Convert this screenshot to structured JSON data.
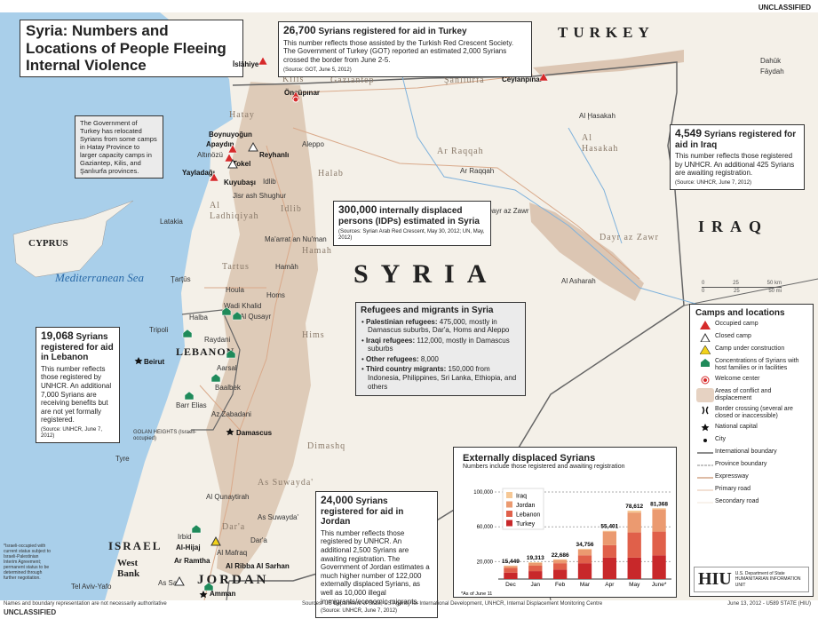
{
  "classification_top": "UNCLASSIFIED",
  "classification_bottom": "UNCLASSIFIED",
  "title": "Syria: Numbers and Locations of People Fleeing Internal Violence",
  "countries": {
    "turkey": "TURKEY",
    "syria": "SYRIA",
    "iraq": "IRAQ",
    "lebanon": "LEBANON",
    "jordan": "JORDAN",
    "israel": "ISRAEL",
    "cyprus": "CYPRUS",
    "west_bank": "West Bank"
  },
  "sea": "Mediterranean Sea",
  "provinces": [
    "Halab",
    "Idlib",
    "Al Ladhiqiyah",
    "Tartus",
    "Hamah",
    "Hims",
    "Ar Raqqah",
    "Dayr az Zawr",
    "Al Hasakah",
    "Dimashq",
    "As Suwayda'",
    "Dar'a",
    "Hatay",
    "Gaziantep",
    "Şanlıurfa",
    "Kilis",
    "Al Qunaytirah"
  ],
  "cities": {
    "aleppo": "Aleppo",
    "idlib": "Idlib",
    "latakia": "Latakia",
    "tartus": "Ţarţūs",
    "hamah": "Hamāh",
    "homs": "Homs",
    "raqqah": "Ar Raqqah",
    "dayr": "Dayr az Zawr",
    "hasakah": "Al Ḩasakah",
    "ashara": "Al Asharah",
    "damascus": "Damascus",
    "beirut": "Beirut",
    "tripoli": "Tripoli",
    "tyre": "Tyre",
    "amman": "Amman",
    "irbid": "Irbid",
    "mafraq": "Al Mafraq",
    "ramtha": "Ar Ramtha",
    "dara": "Dar'a",
    "suwayda": "As Suwayda'",
    "quneitra": "Al Qunaytirah",
    "telaviv": "Tel Aviv-Yafo",
    "assalt": "As Salt",
    "maarrat": "Ma'arrat an Nu'man",
    "jisr": "Jisr ash Shughur",
    "houla": "Houla",
    "qusayr": "Al Qusayr",
    "zabadani": "Az Zabadani",
    "baalbek": "Baalbek",
    "barrelias": "Barr Elias",
    "aarsal": "Aarsal",
    "raydani": "Raydani",
    "halba": "Halba",
    "wadi": "Wadi Khalid",
    "dahuk": "Dahūk",
    "faydah": "Fāydah",
    "golan": "GOLAN HEIGHTS (Israeli-occupied)"
  },
  "camps": [
    "İslâhiye",
    "Öncüpınar",
    "Ceylanpınar",
    "Boynuyoğun",
    "Apaydın",
    "Altınözü",
    "Tokel",
    "Yayladağı",
    "Kuyubaşı",
    "Reyhanlı",
    "Al-Hijaj",
    "Al Ribba Al Sarhan"
  ],
  "boxes": {
    "turkey": {
      "number": "26,700",
      "heading": "Syrians registered for aid in Turkey",
      "body": "This number reflects those assisted by the Turkish Red Crescent Society. The Government of Turkey (GOT) reported an estimated 2,000 Syrians crossed the border from June 2-5.",
      "source": "(Source: GOT, June 5, 2012)"
    },
    "hatay_note": "The Government of Turkey has relocated Syrians from some camps in Hatay Province to larger capacity camps in Gaziantep, Kilis, and Şanlıurfa provinces.",
    "idp": {
      "number": "300,000",
      "heading": "internally displaced persons (IDPs) estimated in Syria",
      "source": "(Sources: Syrian Arab Red Crescent, May 30, 2012; UN, May, 2012)"
    },
    "iraq": {
      "number": "4,549",
      "heading": "Syrians registered for aid in Iraq",
      "body": "This number reflects those registered by UNHCR. An additional 425 Syrians are awaiting registration.",
      "source": "(Source: UNHCR, June 7, 2012)"
    },
    "lebanon": {
      "number": "19,068",
      "heading": "Syrians registered for aid in Lebanon",
      "body": "This number reflects those registered by UNHCR. An additional 7,000 Syrians are receiving benefits but are not yet formally registered.",
      "source": "(Source: UNHCR, June 7, 2012)"
    },
    "jordan": {
      "number": "24,000",
      "heading": "Syrians registered for aid in Jordan",
      "body": "This number reflects those registered by UNHCR. An additional 2,500 Syrians are awaiting registration. The Government of Jordan estimates a much higher number of 122,000 externally displaced Syrians, as well as 10,000 illegal immigrants/economic migrants.",
      "source": "(Source: UNHCR, June 7, 2012)"
    },
    "refugees": {
      "heading": "Refugees and migrants in Syria",
      "items": [
        {
          "label": "Palestinian refugees:",
          "text": "475,000, mostly in Damascus suburbs, Dar'a, Homs and Aleppo"
        },
        {
          "label": "Iraqi refugees:",
          "text": "112,000, mostly in Damascus suburbs"
        },
        {
          "label": "Other refugees:",
          "text": "8,000"
        },
        {
          "label": "Third country migrants:",
          "text": "150,000 from Indonesia, Philippines, Sri Lanka, Ethiopia, and others"
        }
      ]
    }
  },
  "israel_note": "*Israeli-occupied with current status subject to Israeli-Palestinian Interim Agreement; permanent status to be determined through further negotiation.",
  "scale": {
    "km": [
      "0",
      "25",
      "50 km"
    ],
    "mi": [
      "0",
      "25",
      "50 mi"
    ]
  },
  "legend": {
    "title": "Camps and locations",
    "items": [
      {
        "icon": "occupied-camp",
        "label": "Occupied camp",
        "color": "#d62a2a"
      },
      {
        "icon": "closed-camp",
        "label": "Closed camp"
      },
      {
        "icon": "camp-under-construction",
        "label": "Camp under construction",
        "color": "#f2d21b"
      },
      {
        "icon": "host-concentration",
        "label": "Concentrations of Syrians with host families or in facilities",
        "color": "#1f8a5a"
      },
      {
        "icon": "welcome-center",
        "label": "Welcome center",
        "color": "#d62a2a"
      },
      {
        "icon": "conflict-area",
        "label": "Areas of conflict and displacement",
        "color": "#e6d2c2"
      },
      {
        "icon": "border-crossing",
        "label": "Border crossing (several are closed or inaccessible)"
      },
      {
        "icon": "national-capital",
        "label": "National capital"
      },
      {
        "icon": "city",
        "label": "City"
      },
      {
        "icon": "international-boundary",
        "label": "International boundary"
      },
      {
        "icon": "province-boundary",
        "label": "Province boundary"
      },
      {
        "icon": "expressway",
        "label": "Expressway"
      },
      {
        "icon": "primary-road",
        "label": "Primary road"
      },
      {
        "icon": "secondary-road",
        "label": "Secondary road"
      }
    ]
  },
  "logo": {
    "text": "HIU",
    "sub": "HUMANITARIAN INFORMATION UNIT",
    "agency": "U.S. Department of State"
  },
  "footer": {
    "left": "Names and boundary representation are not necessarily authoritative",
    "center": "Sources: US Department of State, US Agency for International Development, UNHCR, Internal Displacement Monitoring Centre",
    "right": "June 13, 2012 - U589 STATE (HIU)"
  },
  "chart_data": {
    "type": "bar",
    "stacked": true,
    "title": "Externally displaced Syrians",
    "subtitle": "Numbers include those registered and awaiting registration",
    "categories": [
      "Dec",
      "Jan",
      "Feb",
      "Mar",
      "Apr",
      "May",
      "June*"
    ],
    "series": [
      {
        "name": "Turkey",
        "color": "#c8282a",
        "values": [
          7300,
          9100,
          10900,
          18200,
          24700,
          24700,
          27300
        ]
      },
      {
        "name": "Lebanon",
        "color": "#e0604a",
        "values": [
          5400,
          6200,
          7300,
          9100,
          14200,
          28800,
          27200
        ]
      },
      {
        "name": "Jordan",
        "color": "#eb9a70",
        "values": [
          2300,
          3200,
          3800,
          6500,
          15600,
          22900,
          25500
        ]
      },
      {
        "name": "Iraq",
        "color": "#f6c895",
        "values": [
          449,
          813,
          686,
          956,
          901,
          2212,
          1368
        ]
      }
    ],
    "totals": [
      "15,449",
      "19,313",
      "22,686",
      "34,756",
      "55,401",
      "78,612",
      "81,368"
    ],
    "yticks": [
      "20,000",
      "60,000",
      "100,000"
    ],
    "ytick_values": [
      20000,
      60000,
      100000
    ],
    "ylim": [
      0,
      100000
    ],
    "grid": true,
    "legend_placement": "top-left",
    "footnote": "*As of June 11"
  }
}
